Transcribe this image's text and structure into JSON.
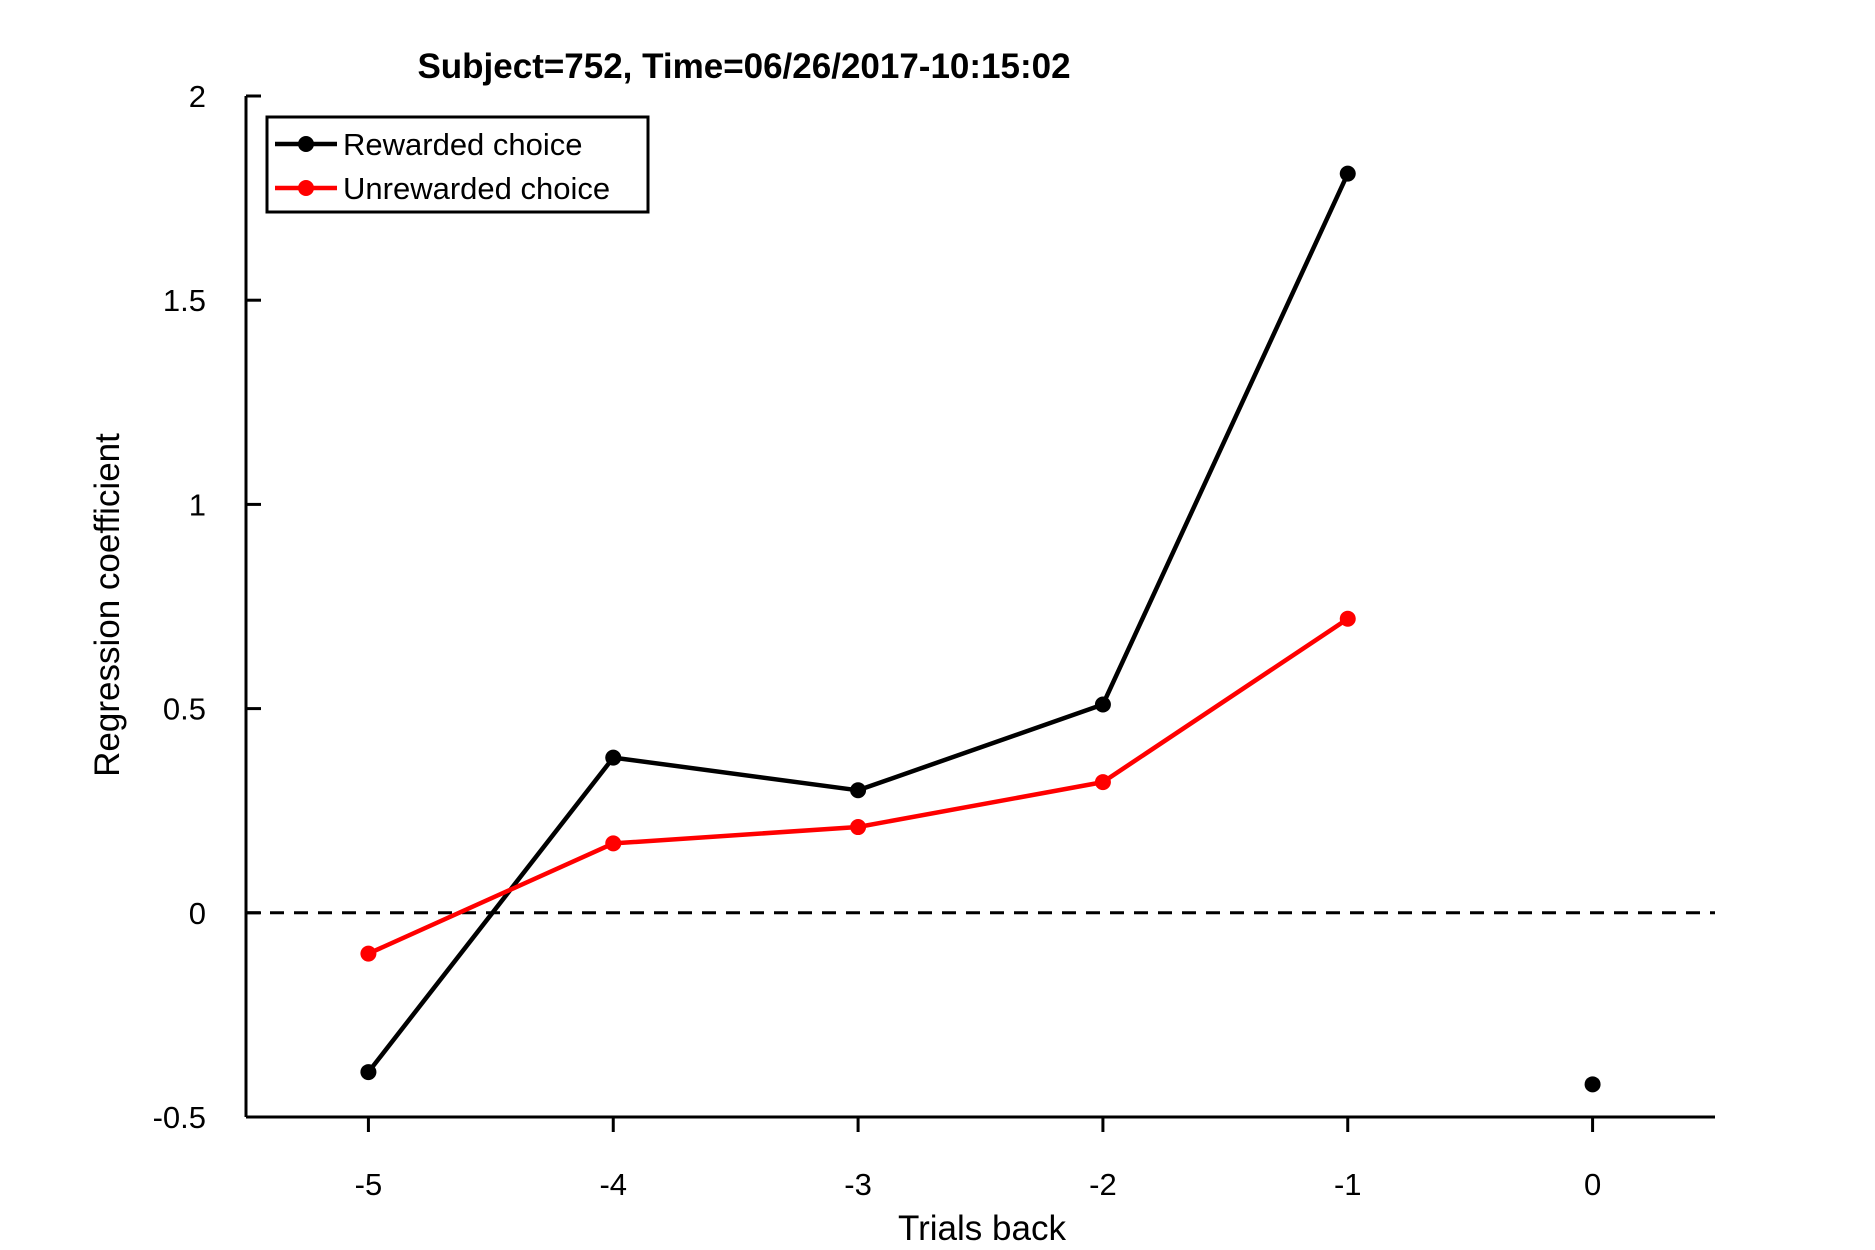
{
  "chart_data": {
    "type": "line",
    "title": "Subject=752, Time=06/26/2017-10:15:02",
    "xlabel": "Trials back",
    "ylabel": "Regression coefficient",
    "xlim": [
      -5.5,
      0.5
    ],
    "ylim": [
      -0.5,
      2
    ],
    "x_ticks": [
      -5,
      -4,
      -3,
      -2,
      -1,
      0
    ],
    "x_tick_labels": [
      "-5",
      "-4",
      "-3",
      "-2",
      "-1",
      "0"
    ],
    "y_ticks": [
      -0.5,
      0,
      0.5,
      1,
      1.5,
      2
    ],
    "y_tick_labels": [
      "-0.5",
      "0",
      "0.5",
      "1",
      "1.5",
      "2"
    ],
    "grid": false,
    "legend_position": "top-left",
    "reference_line": {
      "y": 0,
      "style": "dashed",
      "color": "#000000"
    },
    "series": [
      {
        "name": "Rewarded choice",
        "color": "#000000",
        "x": [
          -5,
          -4,
          -3,
          -2,
          -1
        ],
        "values": [
          -0.39,
          0.38,
          0.3,
          0.51,
          1.81
        ]
      },
      {
        "name": "Unrewarded choice",
        "color": "#ff0000",
        "x": [
          -5,
          -4,
          -3,
          -2,
          -1
        ],
        "values": [
          -0.1,
          0.17,
          0.21,
          0.32,
          0.72
        ]
      }
    ],
    "extra_points": [
      {
        "x": 0,
        "y": -0.42,
        "color": "#000000"
      }
    ]
  }
}
